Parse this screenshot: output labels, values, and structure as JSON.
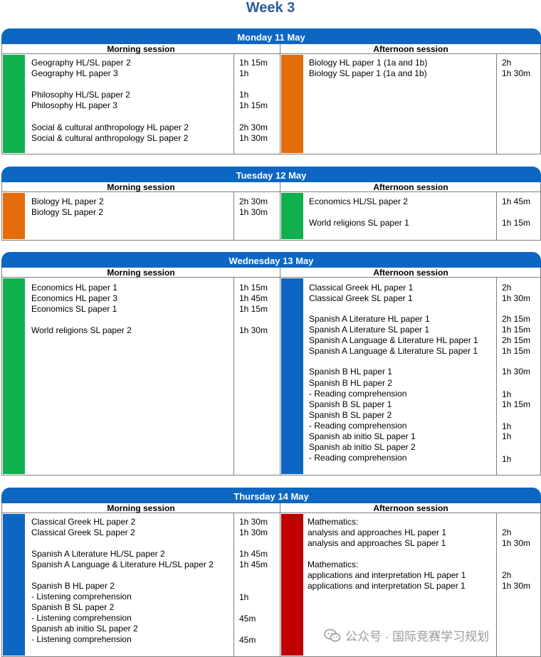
{
  "week_title": "Week 3",
  "colors": {
    "title": "#2e5b9c",
    "header": "#0c66c2",
    "green": "#11b04f",
    "orange": "#e46c0a",
    "blue": "#0c66c2",
    "red": "#c00000"
  },
  "days": [
    {
      "title": "Monday 11 May",
      "morning": {
        "label": "Morning session",
        "color": "green",
        "rows": [
          {
            "subject": "Geography HL/SL paper 2",
            "duration": "1h 15m"
          },
          {
            "subject": "Geography HL paper 3",
            "duration": "1h"
          },
          {
            "subject": "",
            "duration": ""
          },
          {
            "subject": "Philosophy HL/SL paper 2",
            "duration": "1h"
          },
          {
            "subject": "Philosophy HL paper 3",
            "duration": "1h 15m"
          },
          {
            "subject": "",
            "duration": ""
          },
          {
            "subject": "Social & cultural anthropology HL paper 2",
            "duration": "2h 30m"
          },
          {
            "subject": "Social & cultural anthropology SL paper 2",
            "duration": "1h 30m"
          }
        ]
      },
      "afternoon": {
        "label": "Afternoon session",
        "color": "orange",
        "rows": [
          {
            "subject": "Biology HL paper 1 (1a and 1b)",
            "duration": "2h"
          },
          {
            "subject": "Biology SL paper 1 (1a and 1b)",
            "duration": "1h 30m"
          }
        ]
      }
    },
    {
      "title": "Tuesday 12 May",
      "morning": {
        "label": "Morning session",
        "color": "orange",
        "rows": [
          {
            "subject": "Biology HL paper 2",
            "duration": "2h 30m"
          },
          {
            "subject": "Biology SL paper 2",
            "duration": "1h 30m"
          }
        ]
      },
      "afternoon": {
        "label": "Afternoon session",
        "color": "green",
        "rows": [
          {
            "subject": "Economics HL/SL paper 2",
            "duration": "1h 45m"
          },
          {
            "subject": "",
            "duration": ""
          },
          {
            "subject": "World religions SL paper 1",
            "duration": "1h 15m"
          }
        ]
      }
    },
    {
      "title": "Wednesday 13 May",
      "morning": {
        "label": "Morning session",
        "color": "green",
        "rows": [
          {
            "subject": "Economics HL paper 1",
            "duration": "1h 15m"
          },
          {
            "subject": "Economics HL paper 3",
            "duration": "1h 45m"
          },
          {
            "subject": "Economics SL paper 1",
            "duration": "1h 15m"
          },
          {
            "subject": "",
            "duration": ""
          },
          {
            "subject": "World religions SL paper 2",
            "duration": "1h 30m"
          }
        ]
      },
      "afternoon": {
        "label": "Afternoon session",
        "color": "blue",
        "rows": [
          {
            "subject": "Classical Greek HL paper 1",
            "duration": "2h"
          },
          {
            "subject": "Classical Greek SL paper 1",
            "duration": "1h 30m"
          },
          {
            "subject": "",
            "duration": ""
          },
          {
            "subject": "Spanish A Literature HL paper 1",
            "duration": "2h 15m"
          },
          {
            "subject": "Spanish A Literature SL paper 1",
            "duration": "1h 15m"
          },
          {
            "subject": "Spanish A Language & Literature HL paper 1",
            "duration": "2h 15m"
          },
          {
            "subject": "Spanish A Language & Literature SL paper 1",
            "duration": "1h 15m"
          },
          {
            "subject": "",
            "duration": ""
          },
          {
            "subject": "Spanish B HL paper 1",
            "duration": "1h 30m"
          },
          {
            "subject": "Spanish B HL paper 2",
            "duration": ""
          },
          {
            "subject": "- Reading comprehension",
            "duration": "1h"
          },
          {
            "subject": "Spanish B SL paper 1",
            "duration": "1h 15m"
          },
          {
            "subject": "Spanish B SL paper 2",
            "duration": ""
          },
          {
            "subject": "- Reading comprehension",
            "duration": "1h"
          },
          {
            "subject": "Spanish ab initio SL paper 1",
            "duration": "1h"
          },
          {
            "subject": "Spanish ab initio SL paper 2",
            "duration": ""
          },
          {
            "subject": "- Reading comprehension",
            "duration": "1h"
          }
        ]
      }
    },
    {
      "title": "Thursday 14 May",
      "morning": {
        "label": "Morning session",
        "color": "blue",
        "rows": [
          {
            "subject": "Classical Greek HL paper 2",
            "duration": "1h 30m"
          },
          {
            "subject": "Classical Greek SL paper 2",
            "duration": "1h 30m"
          },
          {
            "subject": "",
            "duration": ""
          },
          {
            "subject": "Spanish A Literature HL/SL paper 2",
            "duration": "1h 45m"
          },
          {
            "subject": "Spanish A Language & Literature HL/SL paper 2",
            "duration": "1h 45m"
          },
          {
            "subject": "",
            "duration": ""
          },
          {
            "subject": "Spanish B HL paper 2",
            "duration": ""
          },
          {
            "subject": "- Listening comprehension",
            "duration": "1h"
          },
          {
            "subject": "Spanish B SL paper 2",
            "duration": ""
          },
          {
            "subject": "- Listening comprehension",
            "duration": "45m"
          },
          {
            "subject": "Spanish ab initio SL paper 2",
            "duration": ""
          },
          {
            "subject": "- Listening comprehension",
            "duration": "45m"
          }
        ]
      },
      "afternoon": {
        "label": "Afternoon session",
        "color": "red",
        "rows": [
          {
            "subject": "Mathematics:",
            "duration": ""
          },
          {
            "subject": "analysis and approaches HL paper 1",
            "duration": "2h"
          },
          {
            "subject": "analysis and approaches SL paper 1",
            "duration": "1h 30m"
          },
          {
            "subject": "",
            "duration": ""
          },
          {
            "subject": "Mathematics:",
            "duration": ""
          },
          {
            "subject": "applications and interpretation HL paper 1",
            "duration": "2h"
          },
          {
            "subject": "applications and interpretation SL paper 1",
            "duration": "1h 30m"
          }
        ]
      }
    }
  ],
  "watermark": {
    "text": "公众号 · 国际竞赛学习规划",
    "icon": "wechat-icon"
  }
}
